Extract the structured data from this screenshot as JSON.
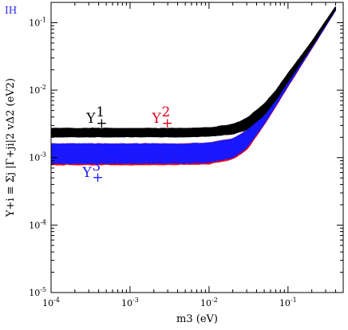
{
  "corner_tag": "IH",
  "colors": {
    "y1": "#000000",
    "y2": "#e0001b",
    "y3": "#1a1aff",
    "tag": "#2323ee"
  },
  "chart_data": {
    "type": "scatter",
    "title": "",
    "xlabel": "m3 (eV)",
    "ylabel": "Y+i ≡ Σj |Γ+ji|2 vΔ2 (eV2)",
    "xscale": "log",
    "yscale": "log",
    "xlim": [
      0.0001,
      0.5
    ],
    "ylim": [
      1e-05,
      0.2
    ],
    "xticks": [
      0.0001,
      0.001,
      0.01,
      0.1
    ],
    "yticks": [
      1e-05,
      0.0001,
      0.001,
      0.01,
      0.1
    ],
    "xtick_exponents": [
      "-4",
      "-3",
      "-2",
      "-1"
    ],
    "ytick_exponents": [
      "-5",
      "-4",
      "-3",
      "-2",
      "-1"
    ],
    "tick_base": "10",
    "grid": false,
    "legend": "none",
    "series": [
      {
        "name": "Y+1",
        "color": "#000000",
        "x": [
          0.0001,
          0.001,
          0.005,
          0.01,
          0.02,
          0.03,
          0.05,
          0.07,
          0.1,
          0.2,
          0.4
        ],
        "y_low": [
          0.00205,
          0.00205,
          0.00205,
          0.0021,
          0.00225,
          0.0026,
          0.0043,
          0.0072,
          0.0135,
          0.045,
          0.16
        ],
        "y_high": [
          0.0027,
          0.0027,
          0.0027,
          0.00275,
          0.0031,
          0.0038,
          0.0062,
          0.0098,
          0.0175,
          0.052,
          0.17
        ]
      },
      {
        "name": "Y+2",
        "color": "#e0001b",
        "x": [
          0.0001,
          0.001,
          0.005,
          0.01,
          0.02,
          0.03,
          0.05,
          0.07,
          0.1,
          0.2,
          0.4
        ],
        "y_low": [
          0.00078,
          0.00078,
          0.00079,
          0.0008,
          0.00095,
          0.0013,
          0.0031,
          0.0058,
          0.0115,
          0.042,
          0.155
        ],
        "y_high": [
          0.0016,
          0.0016,
          0.0016,
          0.00165,
          0.0019,
          0.0025,
          0.0043,
          0.0073,
          0.0135,
          0.045,
          0.16
        ]
      },
      {
        "name": "Y+3",
        "color": "#1a1aff",
        "x": [
          0.0001,
          0.001,
          0.005,
          0.01,
          0.02,
          0.03,
          0.05,
          0.07,
          0.1,
          0.2,
          0.4
        ],
        "y_low": [
          0.00082,
          0.00082,
          0.00083,
          0.00085,
          0.001,
          0.0014,
          0.0032,
          0.006,
          0.0118,
          0.043,
          0.156
        ],
        "y_high": [
          0.0016,
          0.0016,
          0.0016,
          0.00165,
          0.0019,
          0.0025,
          0.0043,
          0.0073,
          0.0135,
          0.045,
          0.16
        ]
      }
    ],
    "annotations": [
      {
        "base": "Y",
        "sub": "+",
        "sup": "1",
        "color": "#000000",
        "x": 0.00028,
        "y": 0.0033
      },
      {
        "base": "Y",
        "sub": "+",
        "sup": "2",
        "color": "#e0001b",
        "x": 0.0019,
        "y": 0.0033
      },
      {
        "base": "Y",
        "sub": "+",
        "sup": "3",
        "color": "#1a1aff",
        "x": 0.00025,
        "y": 0.00052
      }
    ]
  }
}
